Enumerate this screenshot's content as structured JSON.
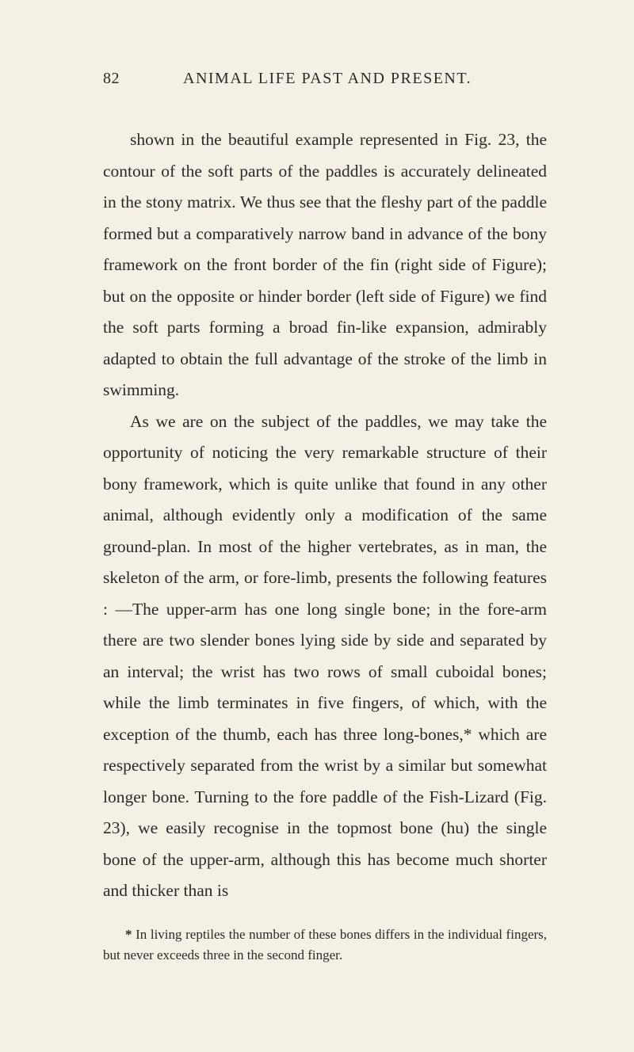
{
  "header": {
    "page_number": "82",
    "running_title": "ANIMAL LIFE PAST AND PRESENT."
  },
  "paragraphs": [
    "shown in the beautiful example represented in Fig. 23, the contour of the soft parts of the paddles is accurately delineated in the stony matrix. We thus see that the fleshy part of the paddle formed but a comparatively narrow band in advance of the bony framework on the front border of the fin (right side of Figure); but on the opposite or hinder border (left side of Figure) we find the soft parts forming a broad fin-like expansion, admirably adapted to obtain the full advantage of the stroke of the limb in swimming.",
    "As we are on the subject of the paddles, we may take the opportunity of noticing the very remarkable structure of their bony framework, which is quite un­like that found in any other animal, although evidently only a modification of the same ground-plan. In most of the higher vertebrates, as in man, the skeleton of the arm, or fore-limb, presents the following features : —The upper-arm has one long single bone; in the fore-arm there are two slender bones lying side by side and separated by an interval; the wrist has two rows of small cuboidal bones; while the limb terminates in five fingers, of which, with the exception of the thumb, each has three long-bones,* which are respectively separated from the wrist by a similar but somewhat longer bone. Turning to the fore paddle of the Fish-Lizard (Fig. 23), we easily recognise in the topmost bone (hu) the single bone of the upper-arm, although this has become much shorter and thicker than is"
  ],
  "footnote": {
    "marker": "*",
    "text": "In living reptiles the number of these bones differs in the indi­vidual fingers, but never exceeds three in the second finger."
  }
}
